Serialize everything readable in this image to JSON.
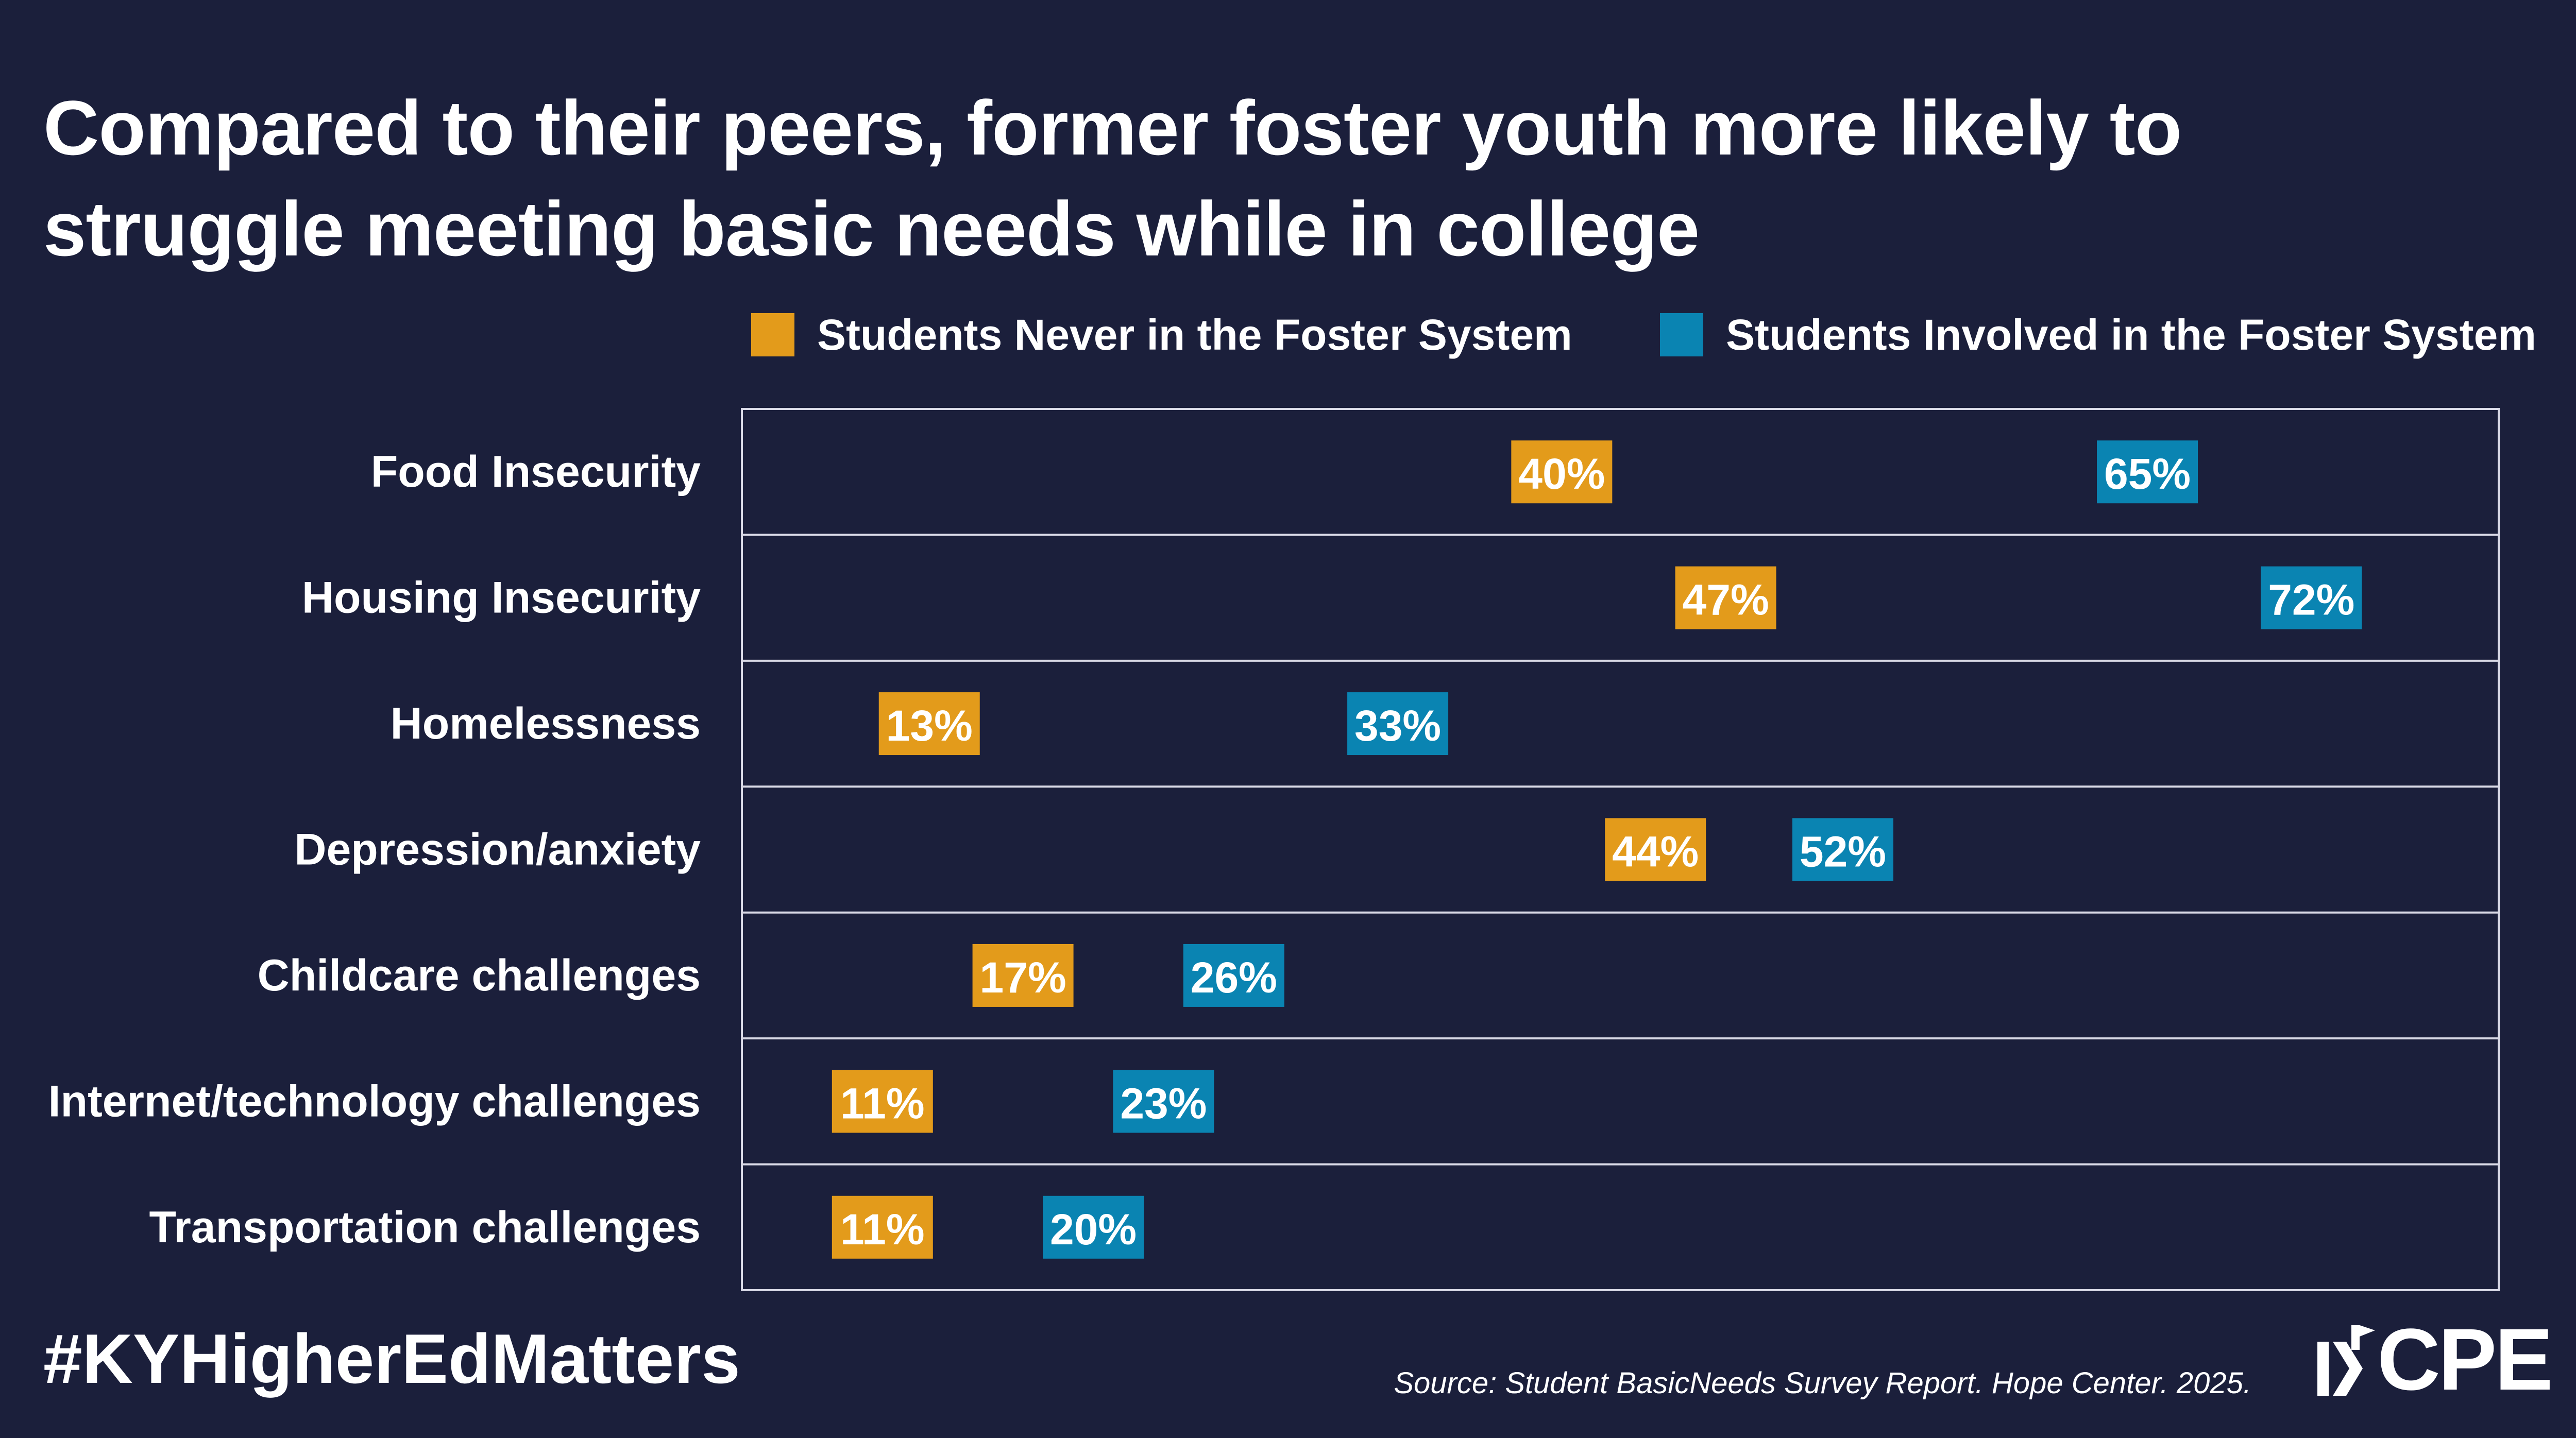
{
  "title": "Compared to their peers, former foster youth more likely to struggle meeting basic needs while in college",
  "hashtag": "#KYHigherEdMatters",
  "source": "Source: Student BasicNeeds Survey Report. Hope Center. 2025.",
  "logo_text": "CPE",
  "colors": {
    "background": "#1b1f3b",
    "never": "#e39b1b",
    "involved": "#0a84b2",
    "gridline": "#d9d9e6"
  },
  "chart_data": {
    "type": "dot",
    "categories": [
      "Food Insecurity",
      "Housing Insecurity",
      "Homelessness",
      "Depression/anxiety",
      "Childcare challenges",
      "Internet/technology challenges",
      "Transportation challenges"
    ],
    "series": [
      {
        "name": "Students Never in the Foster System",
        "values": [
          40,
          47,
          13,
          44,
          17,
          11,
          11
        ]
      },
      {
        "name": "Students Involved in the Foster System",
        "values": [
          65,
          72,
          33,
          52,
          26,
          23,
          20
        ]
      }
    ],
    "value_suffix": "%",
    "xlim": [
      5,
      80
    ],
    "grid": true,
    "legend_position": "top-right"
  }
}
